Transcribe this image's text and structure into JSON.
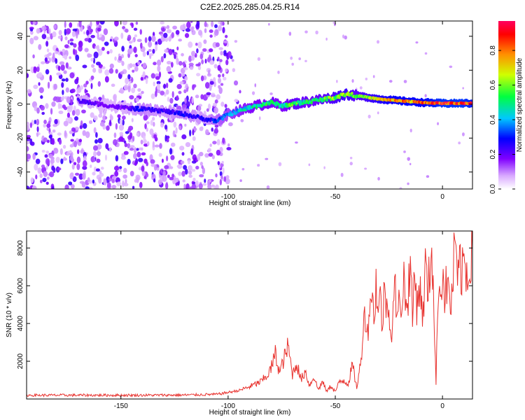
{
  "figure_title": "C2E2.2025.285.04.25.R14",
  "chart_data": [
    {
      "type": "heatmap",
      "title": "C2E2.2025.285.04.25.R14",
      "xlabel": "Height of straight line (km)",
      "ylabel": "Frequency (Hz)",
      "xlim": [
        -194,
        14
      ],
      "ylim": [
        -50,
        49
      ],
      "xticks": [
        -150,
        -100,
        -50,
        0
      ],
      "yticks": [
        -40,
        -20,
        0,
        20,
        40
      ],
      "colorbar": {
        "label": "Normalized spectral amplitude",
        "range": [
          0,
          0.97
        ],
        "ticks": [
          0.0,
          0.2,
          0.4,
          0.6,
          0.8
        ],
        "colormap": [
          "#ffffff",
          "#a000ff",
          "#0000ff",
          "#00d0ff",
          "#00ff40",
          "#ffff00",
          "#ff8000",
          "#ff0000",
          "#ff0060"
        ]
      },
      "noise_region_x": [
        -194,
        -100
      ],
      "signal_track": {
        "x": [
          -170,
          -160,
          -150,
          -140,
          -130,
          -120,
          -110,
          -105,
          -100,
          -90,
          -80,
          -75,
          -70,
          -60,
          -50,
          -45,
          -40,
          -30,
          -20,
          -10,
          0,
          10,
          14
        ],
        "freq": [
          2,
          0,
          -2,
          -3,
          -4,
          -6,
          -9,
          -10,
          -6,
          -2,
          1,
          -1,
          0,
          2,
          4,
          6,
          5,
          3,
          2,
          1,
          0.5,
          0.5,
          0.5
        ],
        "amplitude": [
          0.25,
          0.2,
          0.2,
          0.3,
          0.25,
          0.3,
          0.25,
          0.35,
          0.4,
          0.5,
          0.55,
          0.5,
          0.6,
          0.55,
          0.65,
          0.7,
          0.6,
          0.75,
          0.85,
          0.85,
          0.95,
          0.95,
          0.9
        ]
      }
    },
    {
      "type": "line",
      "xlabel": "Height of straight line (km)",
      "ylabel": "SNR (10 * v/v)",
      "xlim": [
        -194,
        14
      ],
      "ylim": [
        0,
        8900
      ],
      "xticks": [
        -150,
        -100,
        -50,
        0
      ],
      "yticks": [
        2000,
        4000,
        6000,
        8000
      ],
      "series": [
        {
          "name": "SNR",
          "color": "#e8322e",
          "x": [
            -194,
            -180,
            -160,
            -140,
            -120,
            -105,
            -100,
            -95,
            -90,
            -85,
            -82,
            -80,
            -78,
            -76,
            -74,
            -72,
            -70,
            -68,
            -66,
            -64,
            -62,
            -60,
            -58,
            -56,
            -54,
            -52,
            -50,
            -48,
            -46,
            -44,
            -42,
            -40,
            -38,
            -37,
            -36,
            -35,
            -34,
            -33,
            -32,
            -31,
            -30,
            -29,
            -28,
            -27,
            -26,
            -25,
            -24,
            -23,
            -22,
            -21,
            -20,
            -19,
            -18,
            -17,
            -16,
            -15,
            -14,
            -13,
            -12,
            -11,
            -10,
            -9,
            -8,
            -7,
            -6,
            -5,
            -4,
            -3,
            -2,
            -1,
            0,
            1,
            2,
            3,
            4,
            5,
            6,
            7,
            8,
            9,
            10,
            11,
            12,
            13,
            14
          ],
          "y": [
            200,
            200,
            200,
            200,
            210,
            250,
            350,
            450,
            650,
            900,
            1200,
            1600,
            2400,
            1400,
            2100,
            2800,
            1300,
            1900,
            1000,
            1500,
            700,
            1200,
            500,
            900,
            400,
            700,
            400,
            900,
            1000,
            800,
            1800,
            600,
            2000,
            4000,
            4600,
            3400,
            5000,
            5800,
            4200,
            6200,
            4600,
            5400,
            3800,
            6000,
            4800,
            5500,
            3000,
            5000,
            5800,
            4000,
            5400,
            5200,
            6400,
            4800,
            5600,
            7400,
            4200,
            6800,
            5000,
            6000,
            5300,
            4400,
            7200,
            5600,
            6600,
            8400,
            4800,
            700,
            6200,
            5500,
            7000,
            5400,
            6100,
            5600,
            4900,
            6500,
            8900,
            5400,
            7600,
            6200,
            7400,
            7000,
            6300,
            7600,
            7900
          ]
        }
      ]
    }
  ]
}
